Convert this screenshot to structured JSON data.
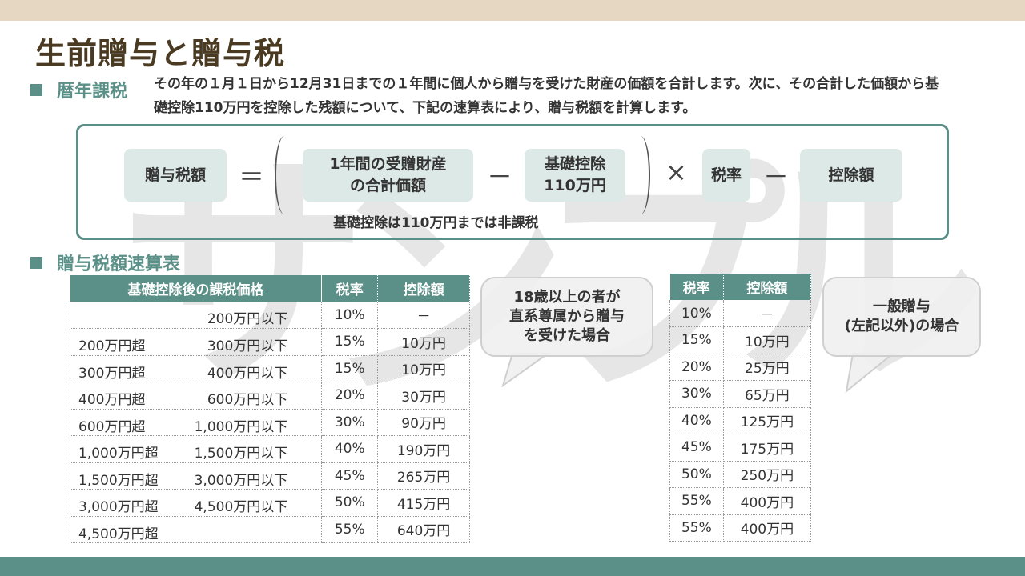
{
  "title": "生前贈与と贈与税",
  "section1": {
    "title": "暦年課税",
    "description": "その年の１月１日から12月31日までの１年間に個人から贈与を受けた財産の価額を合計します。次に、その合計した価額から基礎控除110万円を控除した残額について、下記の速算表により、贈与税額を計算します。"
  },
  "formula": {
    "gift_tax": "贈与税額",
    "equals": "＝",
    "total_l1": "1年間の受贈財産",
    "total_l2": "の合計価額",
    "minus": "－",
    "basic_l1": "基礎控除",
    "basic_l2": "110万円",
    "times": "×",
    "rate": "税率",
    "minus2": "－",
    "deduction": "控除額",
    "note": "基礎控除は110万円までは非課税"
  },
  "section2": {
    "title": "贈与税額速算表"
  },
  "table1": {
    "headers": [
      "基礎控除後の課税価格",
      "税率",
      "控除額"
    ],
    "rows": [
      {
        "lo": "",
        "hi": "200万円以下",
        "rate": "10%",
        "ded": "－"
      },
      {
        "lo": "200万円超",
        "hi": "300万円以下",
        "rate": "15%",
        "ded": "10万円"
      },
      {
        "lo": "300万円超",
        "hi": "400万円以下",
        "rate": "15%",
        "ded": "10万円"
      },
      {
        "lo": "400万円超",
        "hi": "600万円以下",
        "rate": "20%",
        "ded": "30万円"
      },
      {
        "lo": "600万円超",
        "hi": "1,000万円以下",
        "rate": "30%",
        "ded": "90万円"
      },
      {
        "lo": "1,000万円超",
        "hi": "1,500万円以下",
        "rate": "40%",
        "ded": "190万円"
      },
      {
        "lo": "1,500万円超",
        "hi": "3,000万円以下",
        "rate": "45%",
        "ded": "265万円"
      },
      {
        "lo": "3,000万円超",
        "hi": "4,500万円以下",
        "rate": "50%",
        "ded": "415万円"
      },
      {
        "lo": "4,500万円超",
        "hi": "",
        "rate": "55%",
        "ded": "640万円"
      }
    ]
  },
  "bubble1": {
    "l1": "18歳以上の者が",
    "l2": "直系尊属から贈与",
    "l3": "を受けた場合"
  },
  "table2": {
    "headers": [
      "税率",
      "控除額"
    ],
    "rows": [
      {
        "rate": "10%",
        "ded": "－"
      },
      {
        "rate": "15%",
        "ded": "10万円"
      },
      {
        "rate": "20%",
        "ded": "25万円"
      },
      {
        "rate": "30%",
        "ded": "65万円"
      },
      {
        "rate": "40%",
        "ded": "125万円"
      },
      {
        "rate": "45%",
        "ded": "175万円"
      },
      {
        "rate": "50%",
        "ded": "250万円"
      },
      {
        "rate": "55%",
        "ded": "400万円"
      },
      {
        "rate": "55%",
        "ded": "400万円"
      }
    ]
  },
  "bubble2": {
    "l1": "一般贈与",
    "l2": "(左記以外)の場合"
  },
  "watermark": {
    "c1": "サ",
    "c2": "ン",
    "c3": "プ",
    "c4": "ル"
  },
  "colors": {
    "accent": "#5a9087",
    "top_band": "#e6d7c2",
    "title": "#4a3a22",
    "pill": "#dde9e6"
  }
}
